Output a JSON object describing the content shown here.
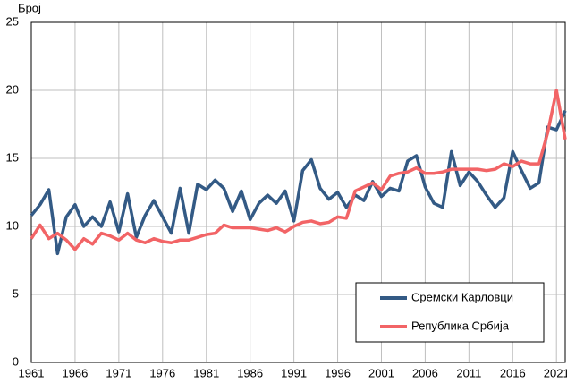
{
  "chart_data": {
    "type": "line",
    "y_label": "Број",
    "x": [
      1961,
      1962,
      1963,
      1964,
      1965,
      1966,
      1967,
      1968,
      1969,
      1970,
      1971,
      1972,
      1973,
      1974,
      1975,
      1976,
      1977,
      1978,
      1979,
      1980,
      1981,
      1982,
      1983,
      1984,
      1985,
      1986,
      1987,
      1988,
      1989,
      1990,
      1991,
      1992,
      1993,
      1994,
      1995,
      1996,
      1997,
      1998,
      1999,
      2000,
      2001,
      2002,
      2003,
      2004,
      2005,
      2006,
      2007,
      2008,
      2009,
      2010,
      2011,
      2012,
      2013,
      2014,
      2015,
      2016,
      2017,
      2018,
      2019,
      2020,
      2021,
      2022
    ],
    "series": [
      {
        "name": "Сремски Карловци",
        "color": "#335a85",
        "values": [
          10.8,
          11.6,
          12.7,
          8.0,
          10.7,
          11.6,
          10.0,
          10.7,
          10.0,
          11.8,
          9.6,
          12.4,
          9.2,
          10.8,
          11.9,
          10.7,
          9.5,
          12.8,
          9.5,
          13.1,
          12.7,
          13.4,
          12.8,
          11.1,
          12.6,
          10.5,
          11.7,
          12.3,
          11.7,
          12.6,
          10.4,
          14.1,
          14.9,
          12.8,
          12.0,
          12.5,
          11.4,
          12.3,
          11.9,
          13.3,
          12.2,
          12.8,
          12.6,
          14.8,
          15.2,
          12.9,
          11.7,
          11.4,
          15.5,
          13.0,
          14.0,
          13.3,
          12.3,
          11.4,
          12.1,
          15.5,
          14.1,
          12.8,
          13.2,
          17.3,
          17.1,
          18.5
        ]
      },
      {
        "name": "Република Србија",
        "color": "#f26466",
        "values": [
          9.1,
          10.1,
          9.1,
          9.5,
          9.0,
          8.3,
          9.1,
          8.7,
          9.5,
          9.3,
          9.0,
          9.5,
          9.0,
          8.8,
          9.1,
          8.9,
          8.8,
          9.0,
          9.0,
          9.2,
          9.4,
          9.5,
          10.1,
          9.9,
          9.9,
          9.9,
          9.8,
          9.7,
          9.9,
          9.6,
          10.0,
          10.3,
          10.4,
          10.2,
          10.3,
          10.7,
          10.6,
          12.6,
          12.9,
          13.2,
          12.7,
          13.7,
          13.9,
          14.0,
          14.3,
          13.9,
          13.9,
          14.0,
          14.2,
          14.2,
          14.2,
          14.2,
          14.1,
          14.2,
          14.6,
          14.4,
          14.8,
          14.6,
          14.6,
          16.9,
          20.0,
          16.4
        ]
      }
    ],
    "xlim": [
      1961,
      2022
    ],
    "xticks": [
      1961,
      1966,
      1971,
      1976,
      1981,
      1986,
      1991,
      1996,
      2001,
      2006,
      2011,
      2016,
      2021
    ],
    "ylim": [
      0,
      25
    ],
    "yticks": [
      0,
      5,
      10,
      15,
      20,
      25
    ],
    "grid": true
  }
}
